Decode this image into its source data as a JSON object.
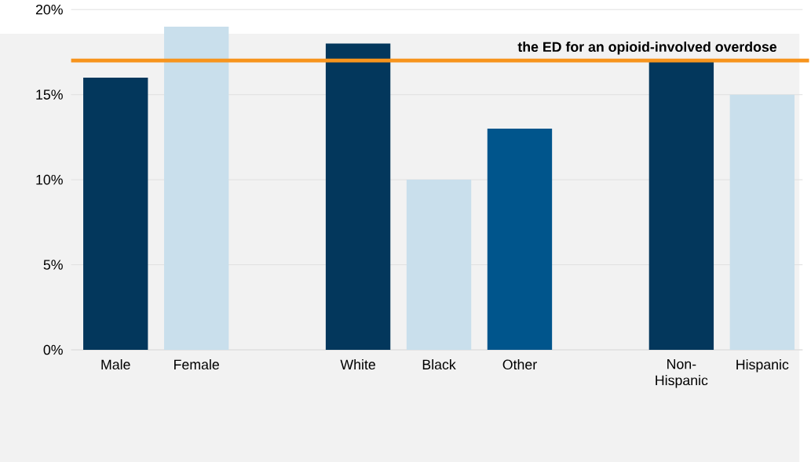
{
  "chart_data": {
    "type": "bar",
    "title": "the ED for an opioid-involved overdose",
    "categories": [
      "Male",
      "Female",
      null,
      "White",
      "Black",
      "Other",
      null,
      "Non-Hispanic",
      "Hispanic"
    ],
    "values": [
      16,
      19,
      null,
      18,
      10,
      13,
      null,
      17,
      15
    ],
    "colors": [
      "#03375c",
      "#c9dfec",
      "#c9dfec",
      "#03375c",
      "#c9dfec",
      "#00558c",
      "#c9dfec",
      "#03375c",
      "#c9dfec"
    ],
    "ylim": [
      0,
      20
    ],
    "yticks": [
      {
        "value": 0,
        "label": "0%"
      },
      {
        "value": 5,
        "label": "5%"
      },
      {
        "value": 10,
        "label": "10%"
      },
      {
        "value": 15,
        "label": "15%"
      },
      {
        "value": 20,
        "label": "20%"
      }
    ],
    "grid": "y",
    "ref_lines": [
      {
        "axis": "y",
        "value": 17,
        "color": "#f7941d"
      }
    ]
  }
}
